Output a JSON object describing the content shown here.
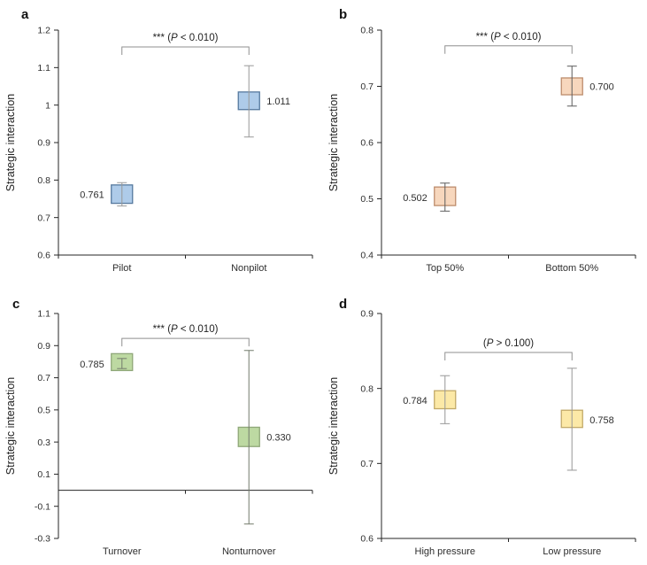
{
  "figure": {
    "type": "multi-panel-box-plot-figure",
    "shared_ylabel": "Strategic interaction",
    "style": {
      "axis_color": "#262626",
      "text_color": "#2e2e2e",
      "bracket_color": "#8f8f8f",
      "background": "#ffffff"
    }
  },
  "chart_data": [
    {
      "panel_label": "a",
      "type": "box",
      "ylabel": "Strategic interaction",
      "ylim": [
        0.6,
        1.2
      ],
      "ytick_values": [
        0.6,
        0.7,
        0.8,
        0.9,
        1.0,
        1.1,
        1.2
      ],
      "ytick_labels": [
        "0.6",
        "0.7",
        "0.8",
        "0.9",
        "1",
        "1.1",
        "1.2"
      ],
      "baseline": 0.6,
      "categories": [
        "Pilot",
        "Nonpilot"
      ],
      "boxes": [
        {
          "category": "Pilot",
          "mean": 0.761,
          "mean_label": "0.761",
          "label_side": "left",
          "box_low": 0.738,
          "box_high": 0.787,
          "whisker_low": 0.731,
          "whisker_high": 0.793
        },
        {
          "category": "Nonpilot",
          "mean": 1.011,
          "mean_label": "1.011",
          "label_side": "right",
          "box_low": 0.988,
          "box_high": 1.035,
          "whisker_low": 0.915,
          "whisker_high": 1.105
        }
      ],
      "significance": {
        "display": "*** (P < 0.010)",
        "prefix": "*** (",
        "p": "P",
        "suffix": " < 0.010)",
        "bracket_y": 1.155
      },
      "style": {
        "box_fill": "#aecbe9",
        "box_stroke": "#56799e",
        "whisker_color": "#9a9a9a"
      }
    },
    {
      "panel_label": "b",
      "type": "box",
      "ylabel": "Strategic interaction",
      "ylim": [
        0.4,
        0.8
      ],
      "ytick_values": [
        0.4,
        0.5,
        0.6,
        0.7,
        0.8
      ],
      "ytick_labels": [
        "0.4",
        "0.5",
        "0.6",
        "0.7",
        "0.8"
      ],
      "baseline": 0.4,
      "categories": [
        "Top 50%",
        "Bottom 50%"
      ],
      "boxes": [
        {
          "category": "Top 50%",
          "mean": 0.502,
          "mean_label": "0.502",
          "label_side": "left",
          "box_low": 0.488,
          "box_high": 0.521,
          "whisker_low": 0.478,
          "whisker_high": 0.528
        },
        {
          "category": "Bottom 50%",
          "mean": 0.7,
          "mean_label": "0.700",
          "label_side": "right",
          "box_low": 0.685,
          "box_high": 0.715,
          "whisker_low": 0.665,
          "whisker_high": 0.736
        }
      ],
      "significance": {
        "display": "*** (P < 0.010)",
        "prefix": "*** (",
        "p": "P",
        "suffix": " < 0.010)",
        "bracket_y": 0.772
      },
      "style": {
        "box_fill": "#f7d7bd",
        "box_stroke": "#bd8d6d",
        "whisker_color": "#5f5f5f"
      }
    },
    {
      "panel_label": "c",
      "type": "box",
      "ylabel": "Strategic interaction",
      "ylim": [
        -0.3,
        1.1
      ],
      "ytick_values": [
        -0.3,
        -0.1,
        0.1,
        0.3,
        0.5,
        0.7,
        0.9,
        1.1
      ],
      "ytick_labels": [
        "-0.3",
        "-0.1",
        "0.1",
        "0.3",
        "0.5",
        "0.7",
        "0.9",
        "1.1"
      ],
      "baseline": 0.0,
      "categories": [
        "Turnover",
        "Nonturnover"
      ],
      "boxes": [
        {
          "category": "Turnover",
          "mean": 0.785,
          "mean_label": "0.785",
          "label_side": "left",
          "box_low": 0.745,
          "box_high": 0.85,
          "whisker_low": 0.757,
          "whisker_high": 0.82
        },
        {
          "category": "Nonturnover",
          "mean": 0.33,
          "mean_label": "0.330",
          "label_side": "right",
          "box_low": 0.272,
          "box_high": 0.392,
          "whisker_low": -0.21,
          "whisker_high": 0.87
        }
      ],
      "significance": {
        "display": "*** (P < 0.010)",
        "prefix": "*** (",
        "p": "P",
        "suffix": " < 0.010)",
        "bracket_y": 0.945
      },
      "style": {
        "box_fill": "#bdd9a2",
        "box_stroke": "#8fa779",
        "whisker_color": "#757d6e"
      }
    },
    {
      "panel_label": "d",
      "type": "box",
      "ylabel": "Strategic interaction",
      "ylim": [
        0.6,
        0.9
      ],
      "ytick_values": [
        0.6,
        0.7,
        0.8,
        0.9
      ],
      "ytick_labels": [
        "0.6",
        "0.7",
        "0.8",
        "0.9"
      ],
      "baseline": 0.6,
      "categories": [
        "High pressure",
        "Low pressure"
      ],
      "boxes": [
        {
          "category": "High pressure",
          "mean": 0.784,
          "mean_label": "0.784",
          "label_side": "left",
          "box_low": 0.773,
          "box_high": 0.797,
          "whisker_low": 0.753,
          "whisker_high": 0.817
        },
        {
          "category": "Low pressure",
          "mean": 0.758,
          "mean_label": "0.758",
          "label_side": "right",
          "box_low": 0.748,
          "box_high": 0.771,
          "whisker_low": 0.691,
          "whisker_high": 0.827
        }
      ],
      "significance": {
        "display": "(P > 0.100)",
        "prefix": "(",
        "p": "P",
        "suffix": " > 0.100)",
        "bracket_y": 0.848
      },
      "style": {
        "box_fill": "#fce9a7",
        "box_stroke": "#c2a968",
        "whisker_color": "#9a9a9a"
      }
    }
  ]
}
